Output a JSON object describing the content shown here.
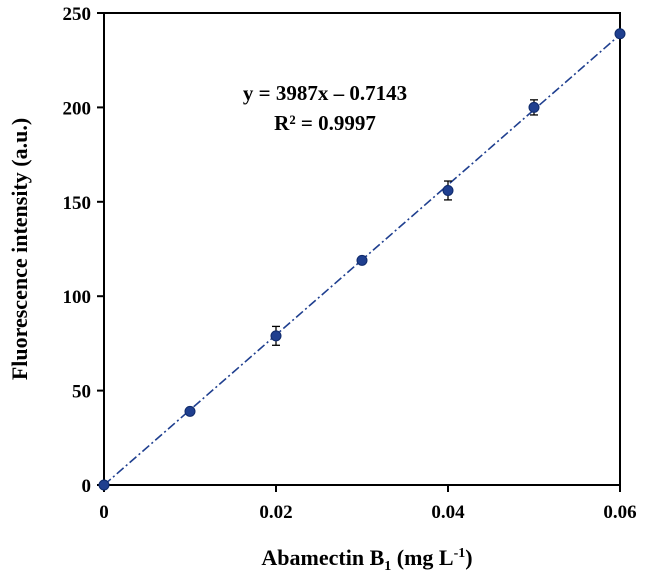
{
  "chart_data": {
    "type": "scatter",
    "xlabel": {
      "main": "Abamectin B",
      "sub": "1",
      "rest": " (mg L",
      "sup": "-1",
      "end": ")"
    },
    "ylabel": "Fluorescence intensity (a.u.)",
    "xlim": [
      0,
      0.06
    ],
    "ylim": [
      0,
      250
    ],
    "x_ticks": [
      "0",
      "0.02",
      "0.04",
      "0.06"
    ],
    "x_tick_values": [
      0,
      0.02,
      0.04,
      0.06
    ],
    "y_ticks": [
      "0",
      "50",
      "100",
      "150",
      "200",
      "250"
    ],
    "y_tick_values": [
      0,
      50,
      100,
      150,
      200,
      250
    ],
    "x": [
      0,
      0.01,
      0.02,
      0.03,
      0.04,
      0.05,
      0.06
    ],
    "y": [
      0,
      39,
      79,
      119,
      156,
      200,
      239
    ],
    "error": [
      0,
      0,
      5,
      0,
      5,
      4,
      0
    ],
    "fit_line": {
      "slope": 3987,
      "intercept": -0.7143,
      "style": "dash-dot"
    },
    "annotations": {
      "equation": "y = 3987x – 0.7143",
      "r2_label": "R² = 0.9997"
    },
    "grid": false,
    "legend": "none",
    "colors": {
      "marker": "#1f3f8f",
      "line": "#1f3f8f",
      "axis": "#000000"
    }
  }
}
